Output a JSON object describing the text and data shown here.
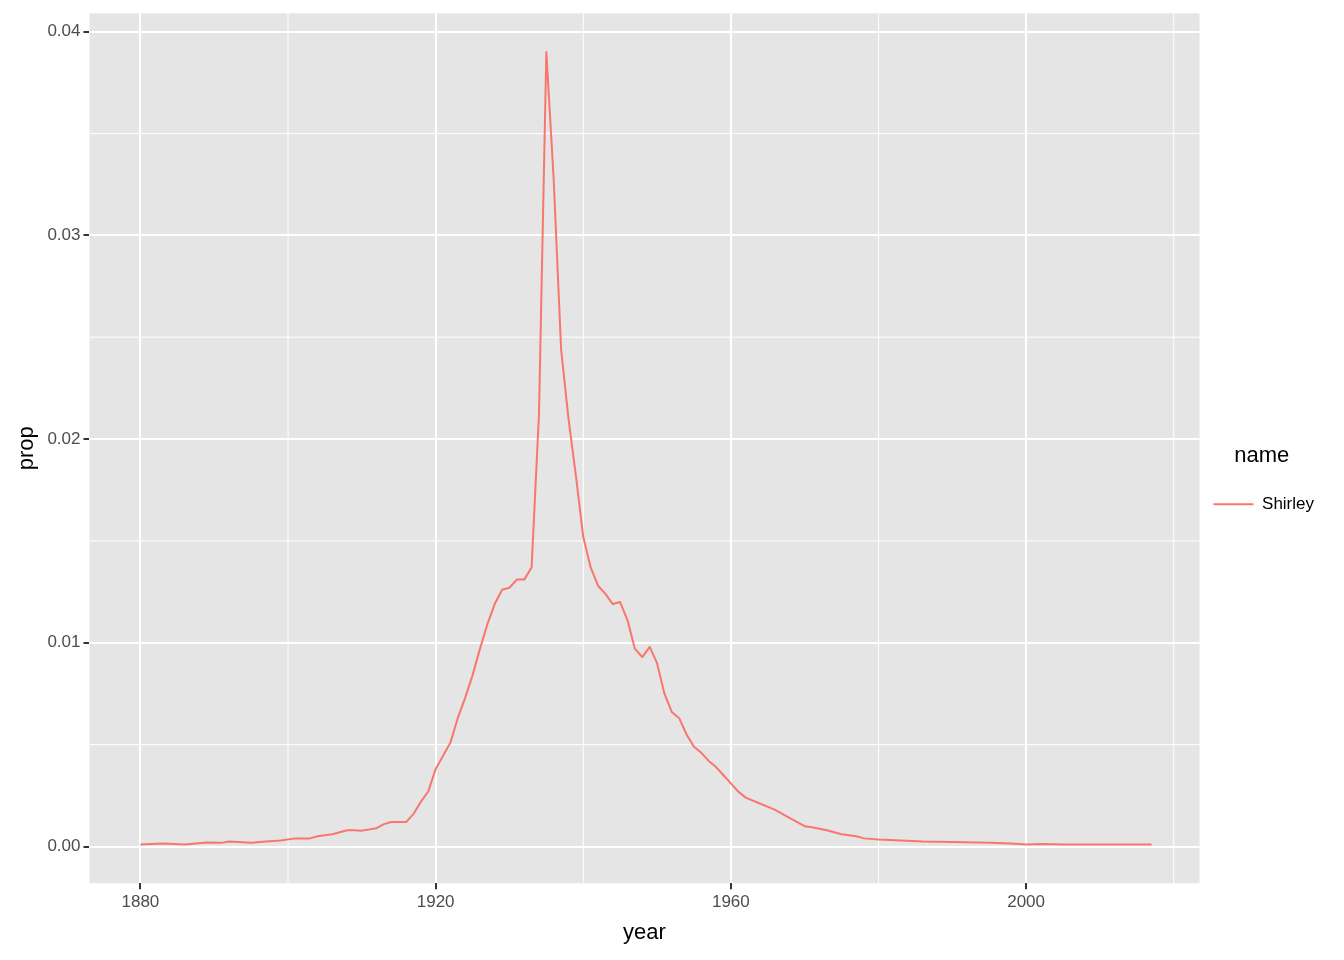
{
  "chart_data": {
    "type": "line",
    "xlabel": "year",
    "ylabel": "prop",
    "legend_title": "name",
    "legend": "right",
    "grid": true,
    "xlim": [
      1873.1,
      2023.5
    ],
    "xticks": [
      1880,
      1920,
      1960,
      2000
    ],
    "ylim": [
      -0.0018,
      0.0409
    ],
    "yticks": [
      {
        "value": 0,
        "label": "0.00"
      },
      0.01,
      0.02,
      0.03,
      0.04
    ],
    "series": [
      {
        "name": "Shirley",
        "color": "#f8766d",
        "x": [
          1880,
          1883,
          1886,
          1889,
          1891,
          1892,
          1895,
          1897,
          1899,
          1901,
          1903,
          1904,
          1906,
          1908,
          1909,
          1910,
          1912,
          1913,
          1914,
          1915,
          1916,
          1917,
          1918,
          1919,
          1920,
          1922,
          1923,
          1924,
          1925,
          1926,
          1927,
          1928,
          1929,
          1930,
          1931,
          1932,
          1933,
          1934,
          1935,
          1936,
          1937,
          1938,
          1939,
          1940,
          1941,
          1942,
          1943,
          1944,
          1945,
          1946,
          1947,
          1948,
          1949,
          1950,
          1951,
          1952,
          1953,
          1954,
          1955,
          1956,
          1957,
          1958,
          1959,
          1960,
          1961,
          1962,
          1964,
          1966,
          1968,
          1970,
          1971,
          1973,
          1975,
          1977,
          1978,
          1980,
          1983,
          1986,
          1990,
          1995,
          1998,
          2000,
          2002,
          2005,
          2008,
          2010,
          2014,
          2017
        ],
        "values": [
          0.0001,
          0.00015,
          0.0001,
          0.0002,
          0.00018,
          0.00025,
          0.00018,
          0.00025,
          0.0003,
          0.0004,
          0.0004,
          0.0005,
          0.0006,
          0.0008,
          0.0008,
          0.00078,
          0.0009,
          0.0011,
          0.0012,
          0.0012,
          0.0012,
          0.0016,
          0.0022,
          0.0027,
          0.0038,
          0.0051,
          0.0063,
          0.0073,
          0.0084,
          0.0097,
          0.0109,
          0.0119,
          0.0126,
          0.0127,
          0.0131,
          0.0131,
          0.0137,
          0.0212,
          0.039,
          0.0327,
          0.0244,
          0.021,
          0.0182,
          0.0152,
          0.0137,
          0.0128,
          0.0124,
          0.0119,
          0.012,
          0.0111,
          0.0097,
          0.0093,
          0.0098,
          0.009,
          0.0075,
          0.0066,
          0.0063,
          0.0055,
          0.0049,
          0.0046,
          0.0042,
          0.0039,
          0.0035,
          0.0031,
          0.0027,
          0.0024,
          0.0021,
          0.0018,
          0.0014,
          0.001,
          0.00095,
          0.0008,
          0.0006,
          0.0005,
          0.0004,
          0.00035,
          0.0003,
          0.00025,
          0.00022,
          0.00018,
          0.00015,
          0.0001,
          0.00012,
          0.0001,
          0.0001,
          0.0001,
          0.0001,
          0.0001
        ]
      }
    ]
  }
}
